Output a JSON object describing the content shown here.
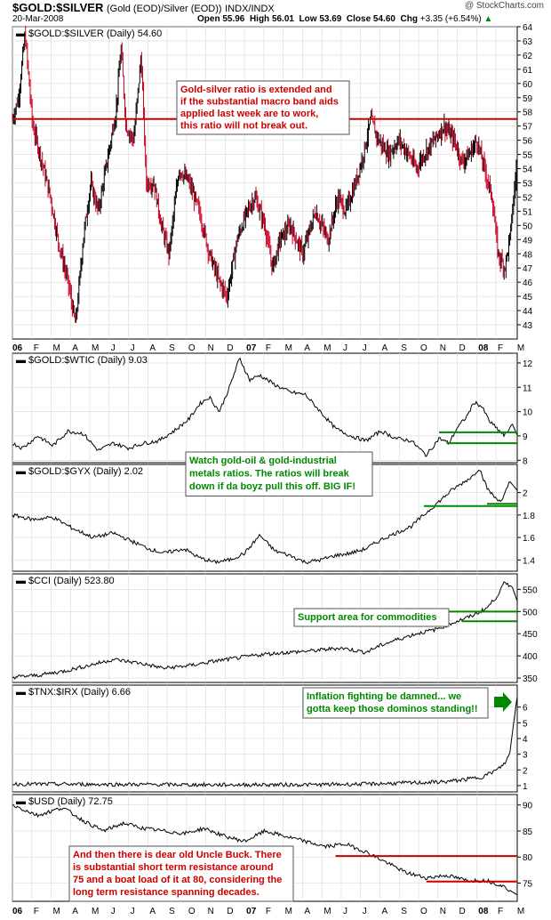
{
  "header": {
    "symbol": "$GOLD:$SILVER",
    "description": "(Gold (EOD)/Silver (EOD))",
    "exchange": "INDX/INDX",
    "date": "20-Mar-2008",
    "open_label": "Open",
    "open": "55.96",
    "high_label": "High",
    "high": "56.01",
    "low_label": "Low",
    "low": "53.69",
    "close_label": "Close",
    "close": "54.60",
    "chg_label": "Chg",
    "chg": "+3.35 (+6.54%)",
    "chg_arrow": "▲",
    "credit": "@ StockCharts.com",
    "up_color": "#008800"
  },
  "x_axis_labels": [
    "06",
    "F",
    "M",
    "A",
    "M",
    "J",
    "J",
    "A",
    "S",
    "O",
    "N",
    "D",
    "07",
    "F",
    "M",
    "A",
    "M",
    "J",
    "J",
    "A",
    "S",
    "O",
    "N",
    "D",
    "08",
    "F",
    "M"
  ],
  "colors": {
    "up": "#000000",
    "down": "#cc0022",
    "line": "#000000",
    "annotation_red": "#cc0000",
    "annotation_green": "#008800",
    "grid": "#d8d8d8"
  },
  "chart_data": [
    {
      "type": "candlestick",
      "legend": "$GOLD:$SILVER (Daily) 54.60",
      "ylim": [
        42,
        64
      ],
      "yticks": [
        43,
        44,
        45,
        46,
        47,
        48,
        49,
        50,
        51,
        52,
        53,
        54,
        55,
        56,
        57,
        58,
        59,
        60,
        61,
        62,
        63,
        64
      ],
      "x_start": "2006-01",
      "x_end": "2008-03-20",
      "resistance_level": 57.5,
      "path": [
        [
          0,
          57.5
        ],
        [
          0.012,
          59
        ],
        [
          0.025,
          63.5
        ],
        [
          0.04,
          57
        ],
        [
          0.055,
          55
        ],
        [
          0.075,
          52
        ],
        [
          0.09,
          49
        ],
        [
          0.11,
          46
        ],
        [
          0.125,
          43
        ],
        [
          0.14,
          49
        ],
        [
          0.155,
          53
        ],
        [
          0.17,
          51
        ],
        [
          0.19,
          55
        ],
        [
          0.205,
          58
        ],
        [
          0.215,
          62.5
        ],
        [
          0.225,
          57
        ],
        [
          0.24,
          56
        ],
        [
          0.255,
          62
        ],
        [
          0.265,
          53
        ],
        [
          0.28,
          53
        ],
        [
          0.295,
          50
        ],
        [
          0.31,
          48
        ],
        [
          0.33,
          54
        ],
        [
          0.35,
          53
        ],
        [
          0.37,
          51
        ],
        [
          0.39,
          48
        ],
        [
          0.41,
          46
        ],
        [
          0.425,
          45
        ],
        [
          0.445,
          49
        ],
        [
          0.465,
          51
        ],
        [
          0.48,
          52
        ],
        [
          0.5,
          50
        ],
        [
          0.515,
          47
        ],
        [
          0.53,
          49
        ],
        [
          0.55,
          50
        ],
        [
          0.575,
          48
        ],
        [
          0.6,
          51
        ],
        [
          0.625,
          49
        ],
        [
          0.645,
          52
        ],
        [
          0.66,
          51
        ],
        [
          0.68,
          53
        ],
        [
          0.695,
          55
        ],
        [
          0.71,
          57.5
        ],
        [
          0.725,
          56
        ],
        [
          0.745,
          55
        ],
        [
          0.765,
          56
        ],
        [
          0.785,
          55
        ],
        [
          0.8,
          54
        ],
        [
          0.815,
          55
        ],
        [
          0.835,
          56
        ],
        [
          0.855,
          57
        ],
        [
          0.875,
          56
        ],
        [
          0.89,
          54.5
        ],
        [
          0.905,
          55
        ],
        [
          0.92,
          56
        ],
        [
          0.935,
          54
        ],
        [
          0.95,
          52
        ],
        [
          0.962,
          48
        ],
        [
          0.975,
          47
        ],
        [
          0.985,
          49
        ],
        [
          1.0,
          54.6
        ]
      ],
      "annotation": {
        "text": [
          "Gold-silver ratio is extended and",
          "if the substantial macro band aids",
          "applied last week are to work,",
          "this ratio will not break out."
        ],
        "color": "#cc0000",
        "x": 0.325,
        "y": 59.8
      }
    },
    {
      "type": "line",
      "legend": "$GOLD:$WTIC (Daily) 9.03",
      "ylim": [
        7.9,
        12.4
      ],
      "yticks": [
        8,
        9,
        10,
        11,
        12
      ],
      "path": [
        [
          0,
          8.7
        ],
        [
          0.02,
          8.5
        ],
        [
          0.05,
          9.0
        ],
        [
          0.08,
          8.6
        ],
        [
          0.11,
          9.2
        ],
        [
          0.14,
          9.1
        ],
        [
          0.17,
          8.4
        ],
        [
          0.2,
          8.7
        ],
        [
          0.23,
          8.5
        ],
        [
          0.26,
          8.7
        ],
        [
          0.29,
          8.8
        ],
        [
          0.32,
          9.2
        ],
        [
          0.35,
          9.7
        ],
        [
          0.37,
          10.3
        ],
        [
          0.39,
          10.6
        ],
        [
          0.41,
          10.0
        ],
        [
          0.43,
          11.0
        ],
        [
          0.45,
          12.2
        ],
        [
          0.47,
          11.3
        ],
        [
          0.49,
          11.5
        ],
        [
          0.52,
          11.1
        ],
        [
          0.55,
          10.8
        ],
        [
          0.58,
          10.7
        ],
        [
          0.61,
          10.0
        ],
        [
          0.64,
          9.3
        ],
        [
          0.67,
          9.0
        ],
        [
          0.7,
          8.8
        ],
        [
          0.73,
          9.2
        ],
        [
          0.76,
          8.9
        ],
        [
          0.79,
          8.8
        ],
        [
          0.82,
          8.2
        ],
        [
          0.845,
          8.9
        ],
        [
          0.865,
          8.7
        ],
        [
          0.88,
          9.3
        ],
        [
          0.9,
          9.8
        ],
        [
          0.915,
          10.4
        ],
        [
          0.93,
          10.2
        ],
        [
          0.945,
          9.6
        ],
        [
          0.96,
          9.3
        ],
        [
          0.975,
          9.0
        ],
        [
          0.99,
          9.5
        ],
        [
          1.0,
          9.03
        ]
      ],
      "support_lines": [
        {
          "y": 9.15,
          "x0": 0.845,
          "x1": 1.0
        },
        {
          "y": 8.7,
          "x0": 0.86,
          "x1": 1.0
        }
      ]
    },
    {
      "type": "line",
      "legend": "$GOLD:$GYX (Daily) 2.02",
      "ylim": [
        1.3,
        2.25
      ],
      "yticks": [
        1.4,
        1.6,
        1.8,
        2.0
      ],
      "path": [
        [
          0,
          1.8
        ],
        [
          0.04,
          1.76
        ],
        [
          0.08,
          1.78
        ],
        [
          0.12,
          1.68
        ],
        [
          0.16,
          1.6
        ],
        [
          0.2,
          1.64
        ],
        [
          0.24,
          1.56
        ],
        [
          0.27,
          1.5
        ],
        [
          0.3,
          1.46
        ],
        [
          0.34,
          1.5
        ],
        [
          0.37,
          1.42
        ],
        [
          0.4,
          1.38
        ],
        [
          0.43,
          1.4
        ],
        [
          0.46,
          1.46
        ],
        [
          0.49,
          1.62
        ],
        [
          0.52,
          1.48
        ],
        [
          0.55,
          1.44
        ],
        [
          0.58,
          1.38
        ],
        [
          0.61,
          1.4
        ],
        [
          0.64,
          1.44
        ],
        [
          0.67,
          1.46
        ],
        [
          0.7,
          1.5
        ],
        [
          0.73,
          1.58
        ],
        [
          0.76,
          1.64
        ],
        [
          0.79,
          1.7
        ],
        [
          0.82,
          1.82
        ],
        [
          0.85,
          1.94
        ],
        [
          0.87,
          2.02
        ],
        [
          0.89,
          2.08
        ],
        [
          0.91,
          2.14
        ],
        [
          0.925,
          2.22
        ],
        [
          0.94,
          2.04
        ],
        [
          0.955,
          1.96
        ],
        [
          0.97,
          1.92
        ],
        [
          0.985,
          2.1
        ],
        [
          1.0,
          2.02
        ]
      ],
      "support_lines": [
        {
          "y": 1.88,
          "x0": 0.815,
          "x1": 1.0
        },
        {
          "y": 1.9,
          "x0": 0.94,
          "x1": 1.0
        }
      ],
      "annotation": {
        "text": [
          "Watch gold-oil & gold-industrial",
          "metals ratios.  The ratios will break",
          "down if da boyz pull this off.  BIG IF!"
        ],
        "color": "#008800",
        "x": 0.33
      }
    },
    {
      "type": "line",
      "legend": "$CCI (Daily) 523.80",
      "ylim": [
        340,
        585
      ],
      "yticks": [
        350,
        400,
        450,
        500,
        550
      ],
      "path": [
        [
          0,
          352
        ],
        [
          0.05,
          356
        ],
        [
          0.1,
          365
        ],
        [
          0.15,
          378
        ],
        [
          0.2,
          392
        ],
        [
          0.25,
          384
        ],
        [
          0.3,
          372
        ],
        [
          0.35,
          378
        ],
        [
          0.4,
          388
        ],
        [
          0.45,
          396
        ],
        [
          0.5,
          404
        ],
        [
          0.55,
          408
        ],
        [
          0.6,
          412
        ],
        [
          0.65,
          418
        ],
        [
          0.7,
          408
        ],
        [
          0.73,
          424
        ],
        [
          0.76,
          436
        ],
        [
          0.8,
          450
        ],
        [
          0.84,
          460
        ],
        [
          0.88,
          478
        ],
        [
          0.91,
          490
        ],
        [
          0.94,
          508
        ],
        [
          0.96,
          535
        ],
        [
          0.975,
          565
        ],
        [
          0.99,
          556
        ],
        [
          1.0,
          523.8
        ]
      ],
      "support_lines": [
        {
          "y": 500,
          "x0": 0.855,
          "x1": 1.0
        },
        {
          "y": 478,
          "x0": 0.89,
          "x1": 1.0
        }
      ],
      "annotation": {
        "text": [
          "Support area for commodities"
        ],
        "color": "#008800",
        "x": 0.555
      }
    },
    {
      "type": "line",
      "legend": "$TNX:$IRX (Daily) 6.66",
      "ylim": [
        0.6,
        7.4
      ],
      "yticks": [
        1,
        2,
        3,
        4,
        5,
        6
      ],
      "path": [
        [
          0,
          1.1
        ],
        [
          0.2,
          1.08
        ],
        [
          0.4,
          1.05
        ],
        [
          0.6,
          1.06
        ],
        [
          0.7,
          1.1
        ],
        [
          0.76,
          1.15
        ],
        [
          0.82,
          1.2
        ],
        [
          0.86,
          1.25
        ],
        [
          0.9,
          1.4
        ],
        [
          0.93,
          1.55
        ],
        [
          0.96,
          2.0
        ],
        [
          0.975,
          2.4
        ],
        [
          0.985,
          3.0
        ],
        [
          0.993,
          5.0
        ],
        [
          1.0,
          6.66
        ]
      ],
      "annotation": {
        "text": [
          "Inflation fighting be damned... we",
          "gotta keep those dominos standing!!"
        ],
        "color": "#008800",
        "x": 0.57
      }
    },
    {
      "type": "line",
      "legend": "$USD (Daily) 72.75",
      "ylim": [
        71.5,
        92
      ],
      "yticks": [
        75,
        80,
        85,
        90
      ],
      "path": [
        [
          0,
          90
        ],
        [
          0.05,
          88
        ],
        [
          0.1,
          89.5
        ],
        [
          0.14,
          87
        ],
        [
          0.18,
          85
        ],
        [
          0.22,
          86.5
        ],
        [
          0.26,
          85.5
        ],
        [
          0.3,
          85
        ],
        [
          0.34,
          84.5
        ],
        [
          0.38,
          85.5
        ],
        [
          0.42,
          84
        ],
        [
          0.46,
          83
        ],
        [
          0.5,
          85
        ],
        [
          0.54,
          84
        ],
        [
          0.58,
          83
        ],
        [
          0.62,
          82
        ],
        [
          0.66,
          82.5
        ],
        [
          0.7,
          81
        ],
        [
          0.74,
          79
        ],
        [
          0.78,
          77
        ],
        [
          0.82,
          76
        ],
        [
          0.86,
          76.5
        ],
        [
          0.9,
          75.5
        ],
        [
          0.94,
          75.5
        ],
        [
          0.97,
          74.5
        ],
        [
          1.0,
          72.75
        ]
      ],
      "resistance_lines": [
        {
          "y": 80.2,
          "x0": 0.64,
          "x1": 1.0
        },
        {
          "y": 75.3,
          "x0": 0.82,
          "x1": 1.0
        }
      ],
      "annotation": {
        "text": [
          "And then there is dear old Uncle Buck. There",
          "is substantial short term resistance around",
          "75 and a boat load of it at 80, considering the",
          "long term resistance spanning decades."
        ],
        "color": "#cc0000",
        "x": 0.11
      }
    }
  ]
}
